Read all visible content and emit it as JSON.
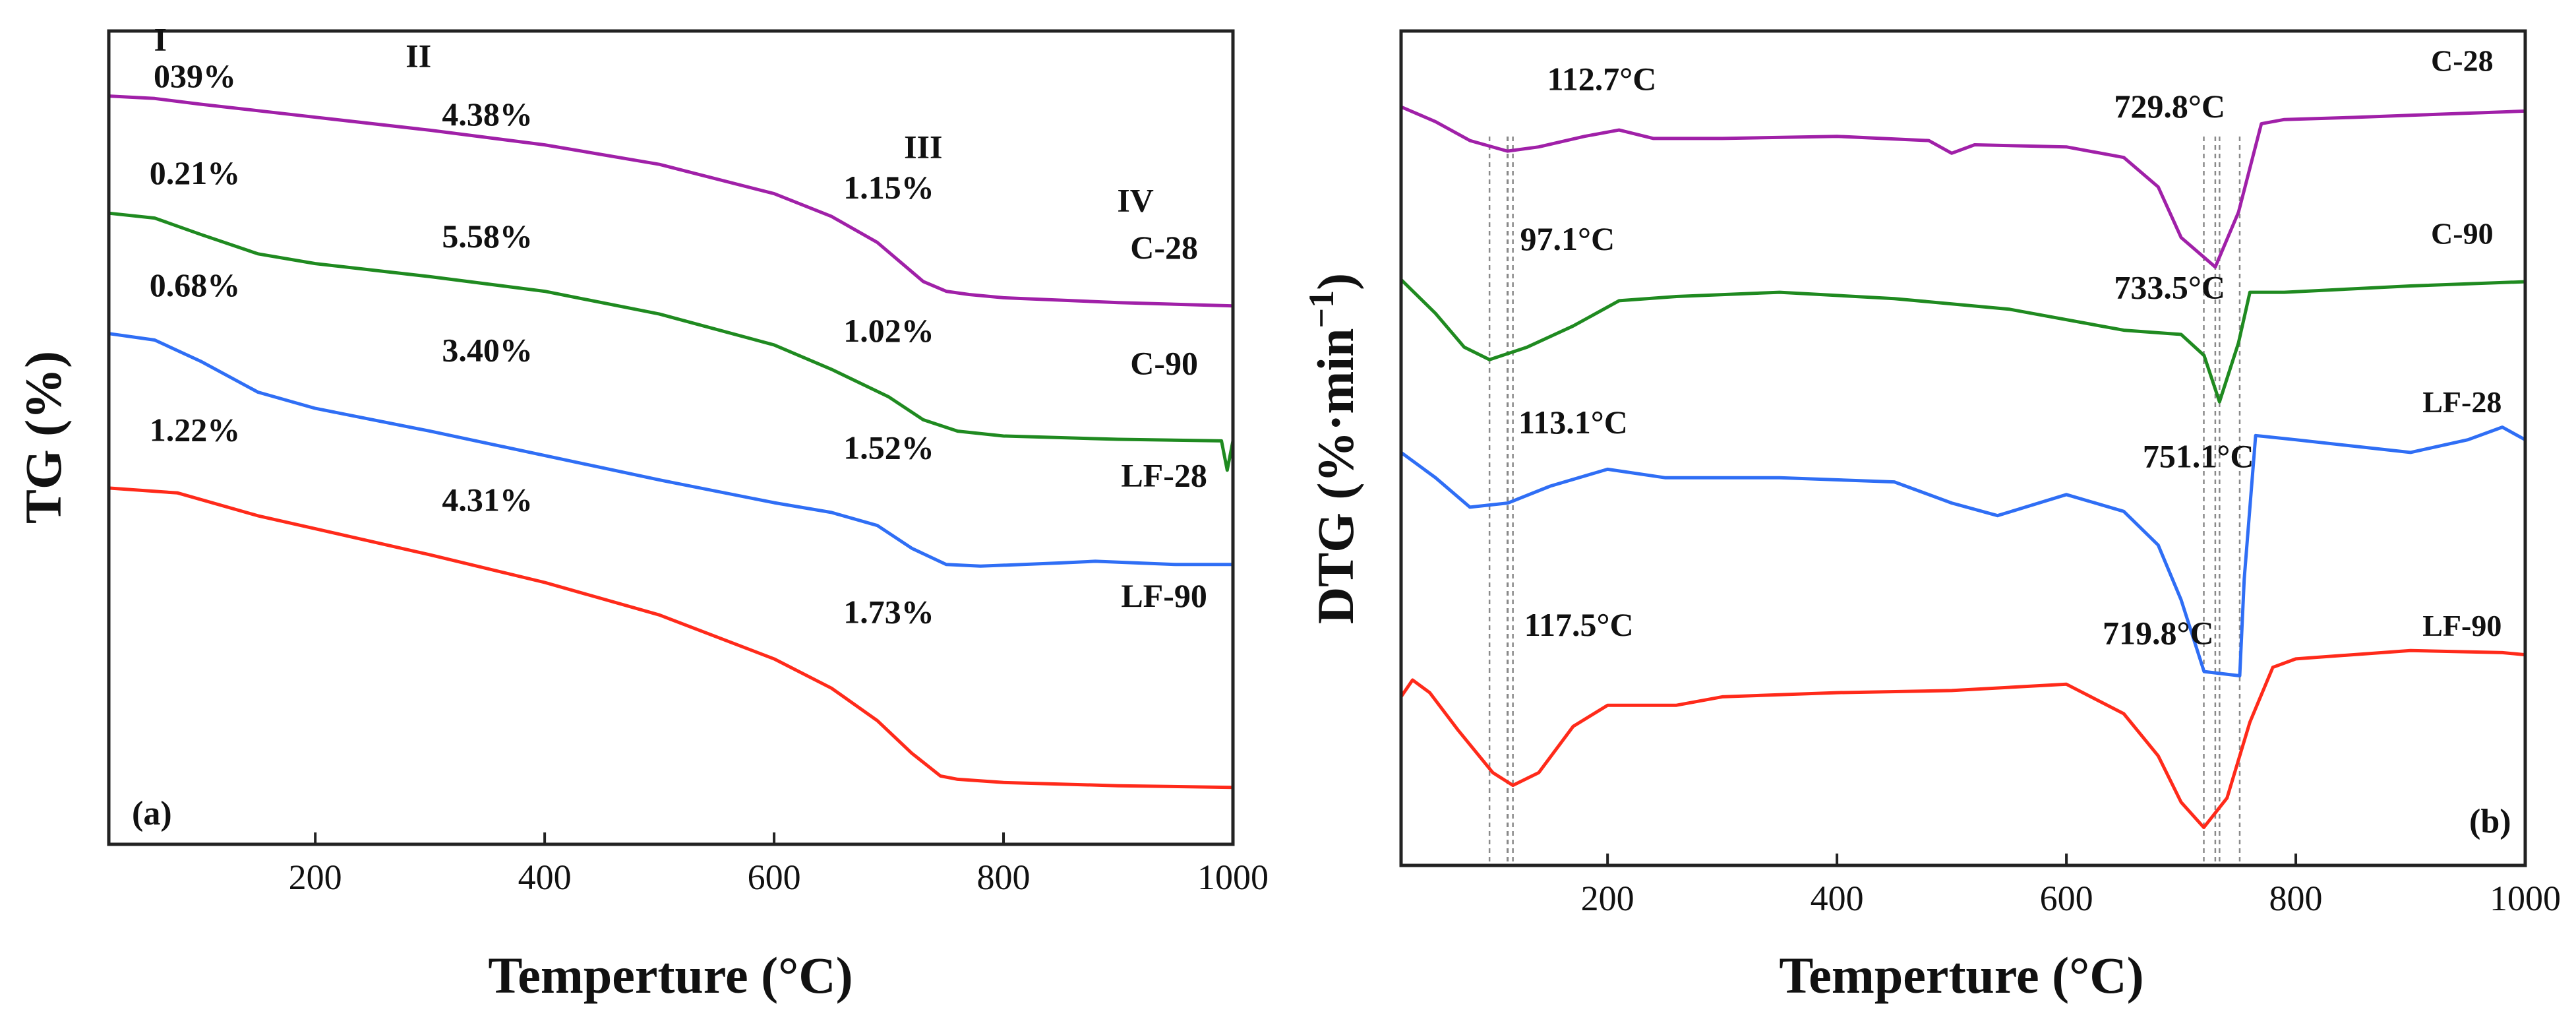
{
  "chart_data": [
    {
      "type": "line",
      "panel": "(a)",
      "xlabel": "Temperture (°C)",
      "ylabel": "TG (%)",
      "xlim": [
        20,
        1000
      ],
      "xticks": [
        "200",
        "400",
        "600",
        "800",
        "1000"
      ],
      "y_ticks_shown": false,
      "legend": "labels beside curves, right side",
      "regions": [
        "I",
        "II",
        "III",
        "IV"
      ],
      "series": [
        {
          "name": "C-28",
          "color": "#a020a8",
          "x": [
            20,
            60,
            100,
            150,
            200,
            300,
            400,
            500,
            600,
            650,
            690,
            710,
            730,
            750,
            770,
            800,
            900,
            1000
          ],
          "y": [
            0,
            -0.15,
            -0.5,
            -0.9,
            -1.3,
            -2.1,
            -3.0,
            -4.2,
            -6.0,
            -7.4,
            -9.0,
            -10.2,
            -11.4,
            -12.0,
            -12.2,
            -12.4,
            -12.7,
            -12.9
          ]
        },
        {
          "name": "C-90",
          "color": "#1f8a20",
          "x": [
            20,
            60,
            100,
            150,
            200,
            300,
            400,
            500,
            600,
            650,
            700,
            730,
            760,
            800,
            900,
            990,
            995,
            1000
          ],
          "y": [
            -7.2,
            -7.5,
            -8.5,
            -9.7,
            -10.3,
            -11.1,
            -12.0,
            -13.4,
            -15.3,
            -16.8,
            -18.5,
            -19.9,
            -20.6,
            -20.9,
            -21.1,
            -21.2,
            -23.0,
            -21.2
          ]
        },
        {
          "name": "LF-28",
          "color": "#2f6ef5",
          "x": [
            20,
            60,
            100,
            150,
            200,
            300,
            400,
            500,
            600,
            650,
            690,
            720,
            750,
            780,
            850,
            880,
            950,
            1000
          ],
          "y": [
            -14.6,
            -15.0,
            -16.3,
            -18.2,
            -19.2,
            -20.6,
            -22.1,
            -23.6,
            -25.0,
            -25.6,
            -26.4,
            -27.8,
            -28.8,
            -28.9,
            -28.7,
            -28.6,
            -28.8,
            -28.8
          ]
        },
        {
          "name": "LF-90",
          "color": "#ff2a1a",
          "x": [
            20,
            80,
            150,
            200,
            300,
            400,
            500,
            600,
            650,
            690,
            720,
            745,
            760,
            800,
            900,
            1000
          ],
          "y": [
            -24.1,
            -24.4,
            -25.8,
            -26.6,
            -28.2,
            -29.9,
            -31.9,
            -34.6,
            -36.4,
            -38.4,
            -40.4,
            -41.8,
            -42.0,
            -42.2,
            -42.4,
            -42.5
          ]
        }
      ],
      "annotations": [
        {
          "text": "039%",
          "x": 95,
          "y": 0.55
        },
        {
          "text": "4.38%",
          "x": 350,
          "y": -1.8
        },
        {
          "text": "1.15%",
          "x": 700,
          "y": -6.3
        },
        {
          "text": "0.21%",
          "x": 95,
          "y": -5.4
        },
        {
          "text": "5.58%",
          "x": 350,
          "y": -9.3
        },
        {
          "text": "1.02%",
          "x": 700,
          "y": -15.1
        },
        {
          "text": "0.68%",
          "x": 95,
          "y": -12.3
        },
        {
          "text": "3.40%",
          "x": 350,
          "y": -16.3
        },
        {
          "text": "1.52%",
          "x": 700,
          "y": -22.3
        },
        {
          "text": "1.22%",
          "x": 95,
          "y": -21.2
        },
        {
          "text": "4.31%",
          "x": 350,
          "y": -25.5
        },
        {
          "text": "1.73%",
          "x": 700,
          "y": -32.4
        }
      ],
      "region_label_positions": [
        {
          "text": "I",
          "x": 65,
          "y": 2.8
        },
        {
          "text": "II",
          "x": 290,
          "y": 1.8
        },
        {
          "text": "III",
          "x": 730,
          "y": -3.8
        },
        {
          "text": "IV",
          "x": 915,
          "y": -7.1
        }
      ]
    },
    {
      "type": "line",
      "panel": "(b)",
      "xlabel": "Temperture (°C)",
      "ylabel": "DTG (%·min",
      "ylabel_superscript": "−1",
      "ylabel_close": ")",
      "xlim": [
        20,
        1000
      ],
      "xticks": [
        "200",
        "400",
        "600",
        "800",
        "1000"
      ],
      "y_ticks_shown": false,
      "legend": "labels above curves at right end",
      "series": [
        {
          "name": "C-28",
          "color": "#a020a8",
          "offset": 0,
          "x": [
            20,
            50,
            80,
            112.7,
            140,
            180,
            210,
            240,
            300,
            400,
            480,
            500,
            520,
            600,
            650,
            680,
            700,
            729.8,
            750,
            770,
            790,
            850,
            900,
            980,
            1000
          ],
          "y": [
            0,
            -0.35,
            -0.8,
            -1.05,
            -0.95,
            -0.7,
            -0.55,
            -0.75,
            -0.75,
            -0.7,
            -0.8,
            -1.1,
            -0.9,
            -0.95,
            -1.2,
            -1.9,
            -3.1,
            -3.8,
            -2.5,
            -0.4,
            -0.3,
            -0.25,
            -0.2,
            -0.12,
            -0.1
          ]
        },
        {
          "name": "C-90",
          "color": "#1f8a20",
          "offset": -4.1,
          "x": [
            20,
            50,
            75,
            97.1,
            130,
            170,
            210,
            260,
            350,
            450,
            550,
            650,
            700,
            720,
            733.5,
            750,
            760,
            790,
            900,
            1000
          ],
          "y": [
            0,
            -0.8,
            -1.6,
            -1.9,
            -1.6,
            -1.1,
            -0.5,
            -0.4,
            -0.3,
            -0.45,
            -0.7,
            -1.2,
            -1.3,
            -1.8,
            -2.9,
            -1.5,
            -0.3,
            -0.3,
            -0.15,
            -0.05
          ]
        },
        {
          "name": "LF-28",
          "color": "#2f6ef5",
          "offset": -8.2,
          "x": [
            20,
            50,
            80,
            113.1,
            150,
            200,
            250,
            350,
            450,
            500,
            540,
            600,
            650,
            680,
            700,
            720,
            751.1,
            755,
            765,
            800,
            900,
            950,
            980,
            1000
          ],
          "y": [
            0,
            -0.6,
            -1.3,
            -1.2,
            -0.8,
            -0.4,
            -0.6,
            -0.6,
            -0.7,
            -1.2,
            -1.5,
            -1.0,
            -1.4,
            -2.2,
            -3.5,
            -5.2,
            -5.3,
            -3.0,
            0.4,
            0.3,
            0.0,
            0.3,
            0.6,
            0.3
          ]
        },
        {
          "name": "LF-90",
          "color": "#ff2a1a",
          "offset": -13.6,
          "x": [
            20,
            30,
            45,
            70,
            100,
            117.5,
            140,
            170,
            200,
            260,
            300,
            400,
            500,
            600,
            650,
            680,
            700,
            719.8,
            740,
            760,
            780,
            800,
            900,
            980,
            1000
          ],
          "y": [
            -0.4,
            0.0,
            -0.3,
            -1.2,
            -2.2,
            -2.5,
            -2.2,
            -1.1,
            -0.6,
            -0.6,
            -0.4,
            -0.3,
            -0.25,
            -0.1,
            -0.8,
            -1.8,
            -2.9,
            -3.5,
            -2.8,
            -1.0,
            0.3,
            0.5,
            0.7,
            0.65,
            0.6
          ]
        }
      ],
      "annotations": [
        {
          "text": "112.7°C",
          "x": 195,
          "y": 0.4
        },
        {
          "text": "729.8°C",
          "x": 690,
          "y": -0.25
        },
        {
          "text": "97.1°C",
          "x": 165,
          "y": -3.4
        },
        {
          "text": "733.5°C",
          "x": 690,
          "y": -4.55
        },
        {
          "text": "113.1°C",
          "x": 170,
          "y": -7.75
        },
        {
          "text": "751.1°C",
          "x": 715,
          "y": -8.55
        },
        {
          "text": "117.5°C",
          "x": 175,
          "y": -12.55
        },
        {
          "text": "719.8°C",
          "x": 680,
          "y": -12.75
        }
      ],
      "reference_lines_x": [
        97.1,
        112.7,
        113.1,
        117.5,
        719.8,
        729.8,
        733.5,
        751.1
      ],
      "series_label_positions": [
        {
          "text": "C-28",
          "x": 945,
          "y": 0.85
        },
        {
          "text": "C-90",
          "x": 945,
          "y": -3.25
        },
        {
          "text": "LF-28",
          "x": 945,
          "y": -7.25
        },
        {
          "text": "LF-90",
          "x": 945,
          "y": -12.55
        }
      ]
    }
  ]
}
